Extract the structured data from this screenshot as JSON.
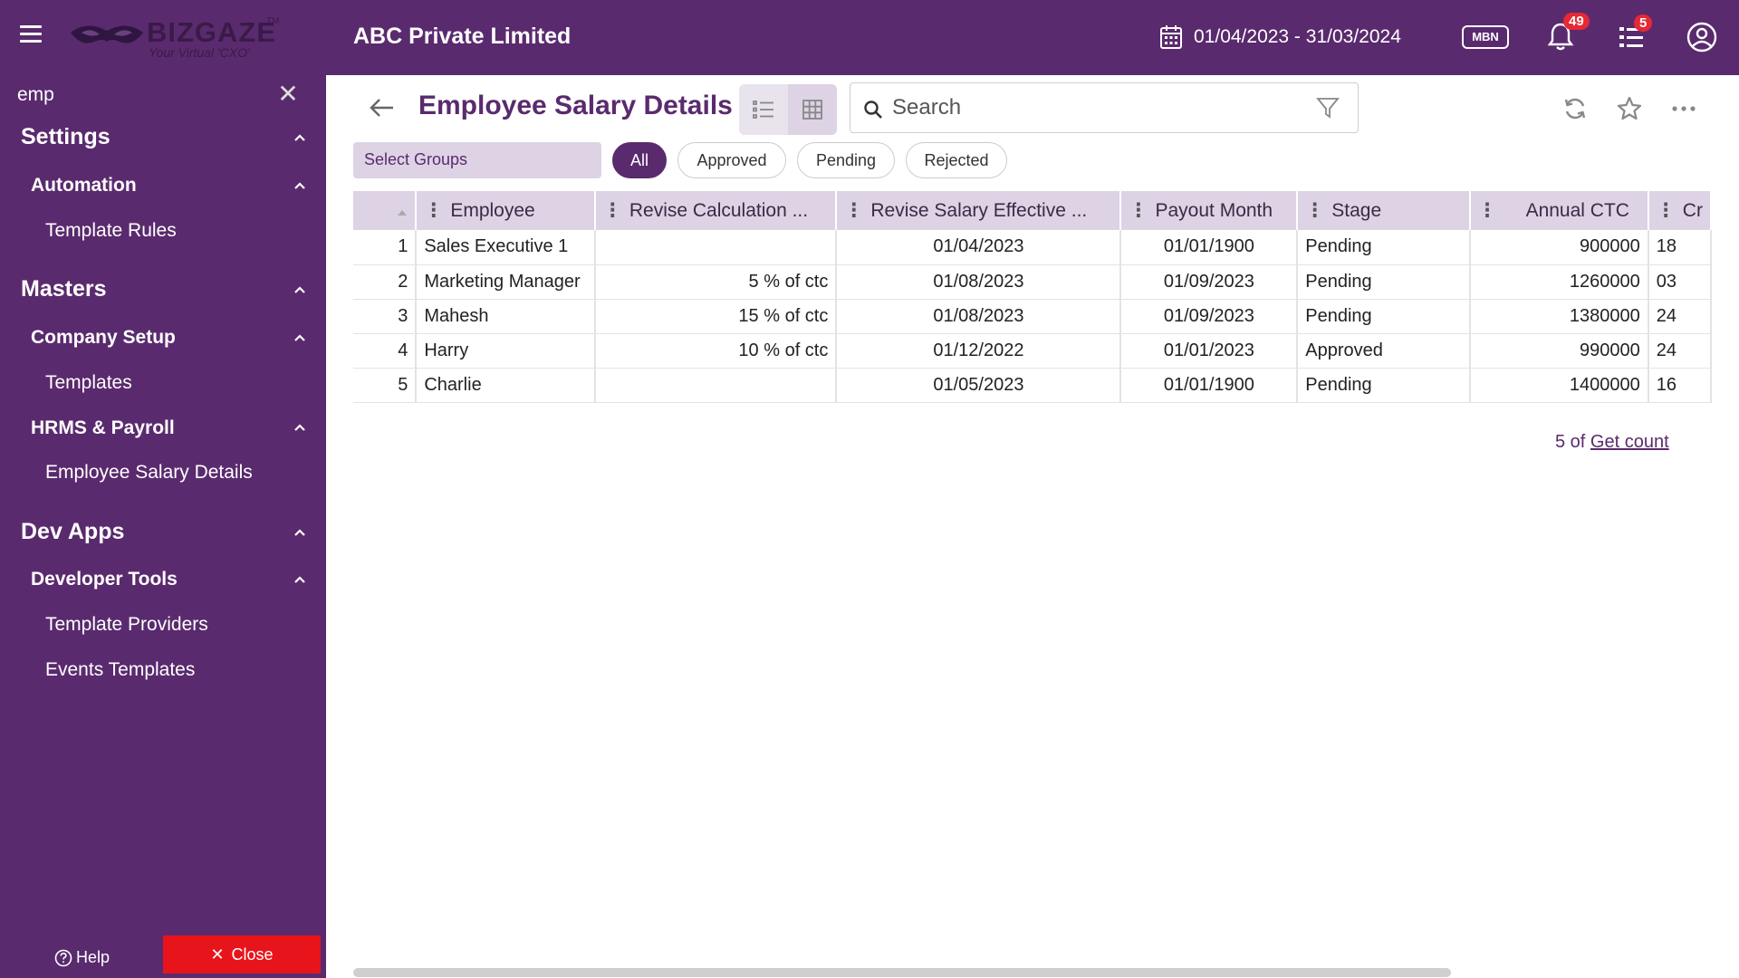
{
  "header": {
    "brand": "BIZGAZE",
    "brand_tm": "TM",
    "tagline": "Your Virtual 'CXO'",
    "company": "ABC Private Limited",
    "date_range": "01/04/2023 - 31/03/2024",
    "branch_code": "MBN",
    "notifications_count": "49",
    "tasks_count": "5"
  },
  "sidebar": {
    "search_value": "emp",
    "items": [
      {
        "label": "Settings"
      },
      {
        "label": "Automation"
      },
      {
        "label": "Template Rules"
      },
      {
        "label": "Masters"
      },
      {
        "label": "Company Setup"
      },
      {
        "label": "Templates"
      },
      {
        "label": "HRMS & Payroll"
      },
      {
        "label": "Employee Salary Details"
      },
      {
        "label": "Dev Apps"
      },
      {
        "label": "Developer Tools"
      },
      {
        "label": "Template Providers"
      },
      {
        "label": "Events Templates"
      }
    ],
    "help_label": "Help",
    "close_label": "Close"
  },
  "main": {
    "title": "Employee Salary Details",
    "search_placeholder": "Search",
    "groups_placeholder": "Select Groups",
    "chips": [
      "All",
      "Approved",
      "Pending",
      "Rejected"
    ],
    "columns": [
      "Employee",
      "Revise Calculation ...",
      "Revise Salary Effective ...",
      "Payout Month",
      "Stage",
      "Annual CTC",
      "Cr"
    ],
    "rows": [
      {
        "no": "1",
        "employee": "Sales Executive 1",
        "calc": "",
        "effective": "01/04/2023",
        "payout": "01/01/1900",
        "stage": "Pending",
        "ctc": "900000",
        "cr": "18"
      },
      {
        "no": "2",
        "employee": "Marketing Manager",
        "calc": "5 % of ctc",
        "effective": "01/08/2023",
        "payout": "01/09/2023",
        "stage": "Pending",
        "ctc": "1260000",
        "cr": "03"
      },
      {
        "no": "3",
        "employee": "Mahesh",
        "calc": "15 % of ctc",
        "effective": "01/08/2023",
        "payout": "01/09/2023",
        "stage": "Pending",
        "ctc": "1380000",
        "cr": "24"
      },
      {
        "no": "4",
        "employee": "Harry",
        "calc": "10 % of ctc",
        "effective": "01/12/2022",
        "payout": "01/01/2023",
        "stage": "Approved",
        "ctc": "990000",
        "cr": "24"
      },
      {
        "no": "5",
        "employee": "Charlie",
        "calc": "",
        "effective": "01/05/2023",
        "payout": "01/01/1900",
        "stage": "Pending",
        "ctc": "1400000",
        "cr": "16"
      }
    ],
    "count_prefix": "5 of",
    "count_link": "Get count"
  },
  "colors": {
    "brand_purple": "#5a2a6e",
    "header_lavender": "#ddd3e5",
    "badge_red": "#e52935",
    "close_red": "#e8141b"
  }
}
